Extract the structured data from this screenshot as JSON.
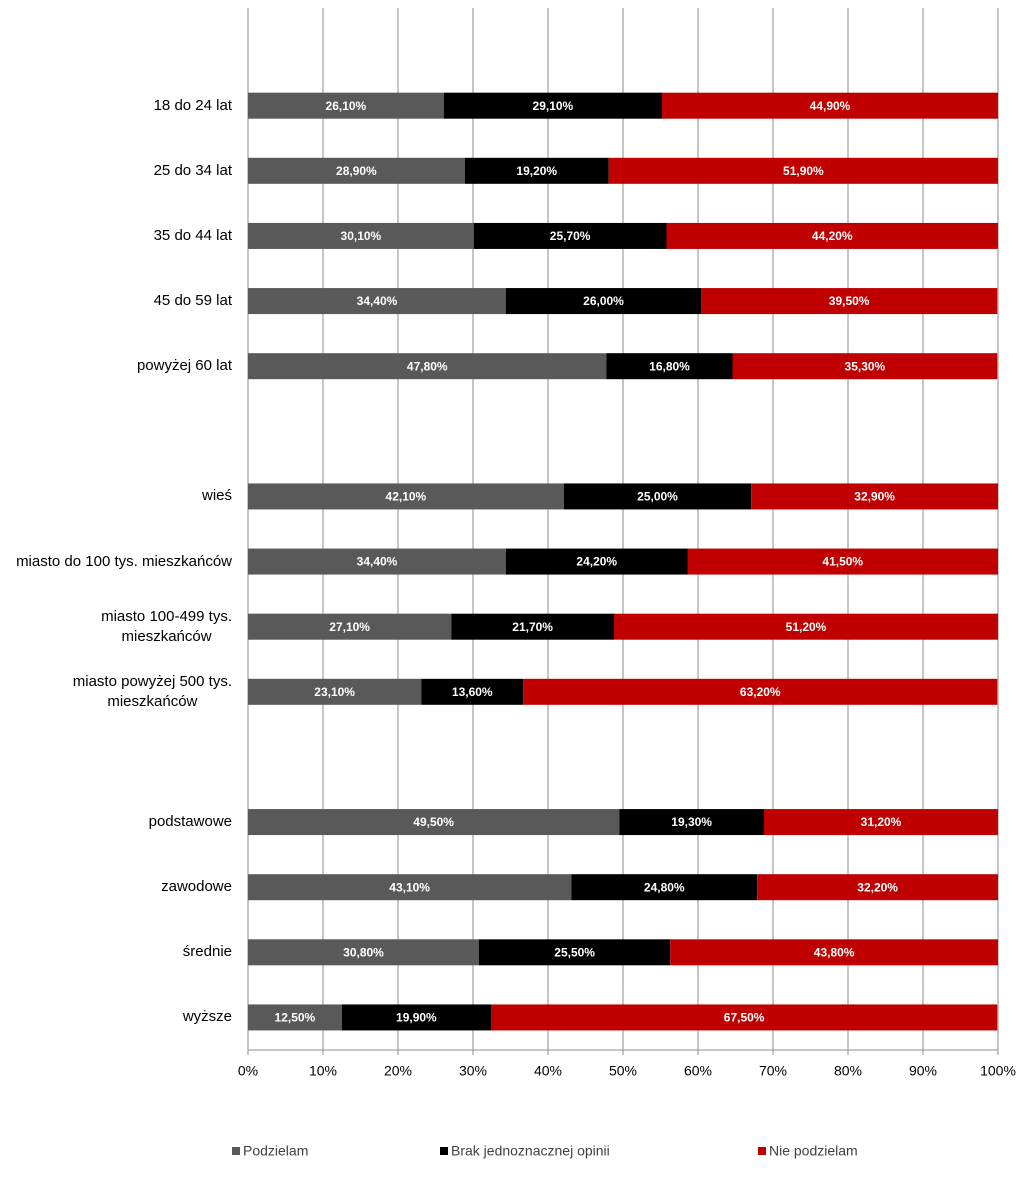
{
  "chart_data": {
    "type": "stacked-barh",
    "categories": [
      null,
      "18 do 24 lat",
      "25 do 34 lat",
      "35 do 44 lat",
      "45 do 59 lat",
      "powyżej 60 lat",
      null,
      "wieś",
      "miasto do 100 tys. mieszkańców",
      "miasto 100-499 tys.\nmieszkańców",
      "miasto powyżej 500 tys.\nmieszkańców",
      null,
      "podstawowe",
      "zawodowe",
      "średnie",
      "wyższe"
    ],
    "series": [
      {
        "name": "Podzielam",
        "color": "#595959",
        "values": [
          null,
          26.1,
          28.9,
          30.1,
          34.4,
          47.8,
          null,
          42.1,
          34.4,
          27.1,
          23.1,
          null,
          49.5,
          43.1,
          30.8,
          12.5
        ],
        "value_labels": [
          null,
          "26,10%",
          "28,90%",
          "30,10%",
          "34,40%",
          "47,80%",
          null,
          "42,10%",
          "34,40%",
          "27,10%",
          "23,10%",
          null,
          "49,50%",
          "43,10%",
          "30,80%",
          "12,50%"
        ]
      },
      {
        "name": "Brak jednoznacznej opinii",
        "color": "#000000",
        "values": [
          null,
          29.1,
          19.2,
          25.7,
          26.0,
          16.8,
          null,
          25.0,
          24.2,
          21.7,
          13.6,
          null,
          19.3,
          24.8,
          25.5,
          19.9
        ],
        "value_labels": [
          null,
          "29,10%",
          "19,20%",
          "25,70%",
          "26,00%",
          "16,80%",
          null,
          "25,00%",
          "24,20%",
          "21,70%",
          "13,60%",
          null,
          "19,30%",
          "24,80%",
          "25,50%",
          "19,90%"
        ]
      },
      {
        "name": "Nie podzielam",
        "color": "#c00000",
        "values": [
          null,
          44.9,
          51.9,
          44.2,
          39.5,
          35.3,
          null,
          32.9,
          41.5,
          51.2,
          63.2,
          null,
          31.2,
          32.2,
          43.8,
          67.5
        ],
        "value_labels": [
          null,
          "44,90%",
          "51,90%",
          "44,20%",
          "39,50%",
          "35,30%",
          null,
          "32,90%",
          "41,50%",
          "51,20%",
          "63,20%",
          null,
          "31,20%",
          "32,20%",
          "43,80%",
          "67,50%"
        ]
      }
    ],
    "xlim": [
      0,
      100
    ],
    "xticks": [
      {
        "value": 0,
        "label": "0%"
      },
      {
        "value": 10,
        "label": "10%"
      },
      {
        "value": 20,
        "label": "20%"
      },
      {
        "value": 30,
        "label": "30%"
      },
      {
        "value": 40,
        "label": "40%"
      },
      {
        "value": 50,
        "label": "50%"
      },
      {
        "value": 60,
        "label": "60%"
      },
      {
        "value": 70,
        "label": "70%"
      },
      {
        "value": 80,
        "label": "80%"
      },
      {
        "value": 90,
        "label": "90%"
      },
      {
        "value": 100,
        "label": "100%"
      }
    ],
    "grid": true,
    "legend": "bottom"
  }
}
